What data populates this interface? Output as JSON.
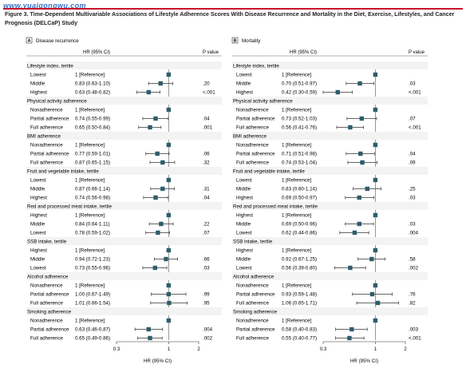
{
  "watermark": "www.yuaigongwu.com",
  "figure_title": "Figure 3. Time-Dependent Multivariable Associations of Lifestyle Adherence Scores With Disease Recurrence and Mortality in the Diet, Exercise, Lifestyles, and Cancer Prognosis (DELCaP) Study",
  "col_hr": "HR (95% CI)",
  "col_p": "P value",
  "x_axis": {
    "label": "HR (95% CI)",
    "scale": "log",
    "range": [
      0.3,
      2
    ],
    "ticks": [
      {
        "v": 0.3,
        "label": "0.3"
      },
      {
        "v": 1,
        "label": "1"
      },
      {
        "v": 2,
        "label": "2"
      }
    ]
  },
  "panels": [
    {
      "letter": "A",
      "title": "Disease recurrence",
      "groups": [
        {
          "title": "Lifestyle index, tertile",
          "rows": [
            {
              "label": "Lowest",
              "text": "1 [Reference]",
              "hr": 1.0,
              "lo": 1.0,
              "hi": 1.0,
              "p": ""
            },
            {
              "label": "Middle",
              "text": "0.83 (0.63-1.10)",
              "hr": 0.83,
              "lo": 0.63,
              "hi": 1.1,
              "p": ".20"
            },
            {
              "label": "Highest",
              "text": "0.63 (0.48-0.82)",
              "hr": 0.63,
              "lo": 0.48,
              "hi": 0.82,
              "p": "<.001"
            }
          ]
        },
        {
          "title": "Physical activity adherence",
          "rows": [
            {
              "label": "Nonadherence",
              "text": "1 [Reference]",
              "hr": 1.0,
              "lo": 1.0,
              "hi": 1.0,
              "p": ""
            },
            {
              "label": "Partial adherence",
              "text": "0.74 (0.55-0.99)",
              "hr": 0.74,
              "lo": 0.55,
              "hi": 0.99,
              "p": ".04"
            },
            {
              "label": "Full adherence",
              "text": "0.65 (0.50-0.84)",
              "hr": 0.65,
              "lo": 0.5,
              "hi": 0.84,
              "p": ".001"
            }
          ]
        },
        {
          "title": "BMI adherence",
          "rows": [
            {
              "label": "Nonadherence",
              "text": "1 [Reference]",
              "hr": 1.0,
              "lo": 1.0,
              "hi": 1.0,
              "p": ""
            },
            {
              "label": "Partial adherence",
              "text": "0.77 (0.59-1.01)",
              "hr": 0.77,
              "lo": 0.59,
              "hi": 1.01,
              "p": ".06"
            },
            {
              "label": "Full adherence",
              "text": "0.87 (0.65-1.15)",
              "hr": 0.87,
              "lo": 0.65,
              "hi": 1.15,
              "p": ".32"
            }
          ]
        },
        {
          "title": "Fruit and vegetable intake, tertile",
          "rows": [
            {
              "label": "Lowest",
              "text": "1 [Reference]",
              "hr": 1.0,
              "lo": 1.0,
              "hi": 1.0,
              "p": ""
            },
            {
              "label": "Middle",
              "text": "0.87 (0.66-1.14)",
              "hr": 0.87,
              "lo": 0.66,
              "hi": 1.14,
              "p": ".31"
            },
            {
              "label": "Highest",
              "text": "0.74 (0.56-0.98)",
              "hr": 0.74,
              "lo": 0.56,
              "hi": 0.98,
              "p": ".04"
            }
          ]
        },
        {
          "title": "Red and processed meat intake, tertile",
          "rows": [
            {
              "label": "Highest",
              "text": "1 [Reference]",
              "hr": 1.0,
              "lo": 1.0,
              "hi": 1.0,
              "p": ""
            },
            {
              "label": "Middle",
              "text": "0.84 (0.64-1.11)",
              "hr": 0.84,
              "lo": 0.64,
              "hi": 1.11,
              "p": ".22"
            },
            {
              "label": "Lowest",
              "text": "0.78 (0.59-1.02)",
              "hr": 0.78,
              "lo": 0.59,
              "hi": 1.02,
              "p": ".07"
            }
          ]
        },
        {
          "title": "SSB intake, tertile",
          "rows": [
            {
              "label": "Highest",
              "text": "1 [Reference]",
              "hr": 1.0,
              "lo": 1.0,
              "hi": 1.0,
              "p": ""
            },
            {
              "label": "Middle",
              "text": "0.94 (0.72-1.23)",
              "hr": 0.94,
              "lo": 0.72,
              "hi": 1.23,
              "p": ".66"
            },
            {
              "label": "Lowest",
              "text": "0.73 (0.55-0.96)",
              "hr": 0.73,
              "lo": 0.55,
              "hi": 0.96,
              "p": ".03"
            }
          ]
        },
        {
          "title": "Alcohol adherence",
          "rows": [
            {
              "label": "Nonadherence",
              "text": "1 [Reference]",
              "hr": 1.0,
              "lo": 1.0,
              "hi": 1.0,
              "p": ""
            },
            {
              "label": "Partial adherence",
              "text": "1.00 (0.67-1.49)",
              "hr": 1.0,
              "lo": 0.67,
              "hi": 1.49,
              "p": ".99"
            },
            {
              "label": "Full adherence",
              "text": "1.01 (0.66-1.54)",
              "hr": 1.01,
              "lo": 0.66,
              "hi": 1.54,
              "p": ".95"
            }
          ]
        },
        {
          "title": "Smoking adherence",
          "rows": [
            {
              "label": "Nonadherence",
              "text": "1 [Reference]",
              "hr": 1.0,
              "lo": 1.0,
              "hi": 1.0,
              "p": ""
            },
            {
              "label": "Partial adherence",
              "text": "0.63 (0.46-0.87)",
              "hr": 0.63,
              "lo": 0.46,
              "hi": 0.87,
              "p": ".004"
            },
            {
              "label": "Full adherence",
              "text": "0.65 (0.49-0.86)",
              "hr": 0.65,
              "lo": 0.49,
              "hi": 0.86,
              "p": ".002"
            }
          ]
        }
      ]
    },
    {
      "letter": "B",
      "title": "Mortality",
      "groups": [
        {
          "title": "Lifestyle index, tertile",
          "rows": [
            {
              "label": "Lowest",
              "text": "1 [Reference]",
              "hr": 1.0,
              "lo": 1.0,
              "hi": 1.0,
              "p": ""
            },
            {
              "label": "Middle",
              "text": "0.70 (0.51-0.97)",
              "hr": 0.7,
              "lo": 0.51,
              "hi": 0.97,
              "p": ".03"
            },
            {
              "label": "Highest",
              "text": "0.42 (0.30-0.59)",
              "hr": 0.42,
              "lo": 0.3,
              "hi": 0.59,
              "p": "<.001"
            }
          ]
        },
        {
          "title": "Physical activity adherence",
          "rows": [
            {
              "label": "Nonadherence",
              "text": "1 [Reference]",
              "hr": 1.0,
              "lo": 1.0,
              "hi": 1.0,
              "p": ""
            },
            {
              "label": "Partial adherence",
              "text": "0.73 (0.52-1.03)",
              "hr": 0.73,
              "lo": 0.52,
              "hi": 1.03,
              "p": ".07"
            },
            {
              "label": "Full adherence",
              "text": "0.56 (0.41-0.76)",
              "hr": 0.56,
              "lo": 0.41,
              "hi": 0.76,
              "p": "<.001"
            }
          ]
        },
        {
          "title": "BMI adherence",
          "rows": [
            {
              "label": "Nonadherence",
              "text": "1 [Reference]",
              "hr": 1.0,
              "lo": 1.0,
              "hi": 1.0,
              "p": ""
            },
            {
              "label": "Partial adherence",
              "text": "0.71 (0.51-0.98)",
              "hr": 0.71,
              "lo": 0.51,
              "hi": 0.98,
              "p": ".04"
            },
            {
              "label": "Full adherence",
              "text": "0.74 (0.53-1.04)",
              "hr": 0.74,
              "lo": 0.53,
              "hi": 1.04,
              "p": ".09"
            }
          ]
        },
        {
          "title": "Fruit and vegetable intake, tertile",
          "rows": [
            {
              "label": "Lowest",
              "text": "1 [Reference]",
              "hr": 1.0,
              "lo": 1.0,
              "hi": 1.0,
              "p": ""
            },
            {
              "label": "Middle",
              "text": "0.83 (0.60-1.14)",
              "hr": 0.83,
              "lo": 0.6,
              "hi": 1.14,
              "p": ".25"
            },
            {
              "label": "Highest",
              "text": "0.69 (0.50-0.97)",
              "hr": 0.69,
              "lo": 0.5,
              "hi": 0.97,
              "p": ".03"
            }
          ]
        },
        {
          "title": "Red and processed meat intake, tertile",
          "rows": [
            {
              "label": "Highest",
              "text": "1 [Reference]",
              "hr": 1.0,
              "lo": 1.0,
              "hi": 1.0,
              "p": ""
            },
            {
              "label": "Middle",
              "text": "0.69 (0.50-0.96)",
              "hr": 0.69,
              "lo": 0.5,
              "hi": 0.96,
              "p": ".03"
            },
            {
              "label": "Lowest",
              "text": "0.62 (0.44-0.86)",
              "hr": 0.62,
              "lo": 0.44,
              "hi": 0.86,
              "p": ".004"
            }
          ]
        },
        {
          "title": "SSB intake, tertile",
          "rows": [
            {
              "label": "Highest",
              "text": "1 [Reference]",
              "hr": 1.0,
              "lo": 1.0,
              "hi": 1.0,
              "p": ""
            },
            {
              "label": "Middle",
              "text": "0.92 (0.67-1.25)",
              "hr": 0.92,
              "lo": 0.67,
              "hi": 1.25,
              "p": ".58"
            },
            {
              "label": "Lowest",
              "text": "0.56 (0.39-0.80)",
              "hr": 0.56,
              "lo": 0.39,
              "hi": 0.8,
              "p": ".002"
            }
          ]
        },
        {
          "title": "Alcohol adherence",
          "rows": [
            {
              "label": "Nonadherence",
              "text": "1 [Reference]",
              "hr": 1.0,
              "lo": 1.0,
              "hi": 1.0,
              "p": ""
            },
            {
              "label": "Partial adherence",
              "text": "0.93 (0.59-1.48)",
              "hr": 0.93,
              "lo": 0.59,
              "hi": 1.48,
              "p": ".76"
            },
            {
              "label": "Full adherence",
              "text": "1.06 (0.65-1.71)",
              "hr": 1.06,
              "lo": 0.65,
              "hi": 1.71,
              "p": ".82"
            }
          ]
        },
        {
          "title": "Smoking adherence",
          "rows": [
            {
              "label": "Nonadherence",
              "text": "1 [Reference]",
              "hr": 1.0,
              "lo": 1.0,
              "hi": 1.0,
              "p": ""
            },
            {
              "label": "Partial adherence",
              "text": "0.58 (0.40-0.83)",
              "hr": 0.58,
              "lo": 0.4,
              "hi": 0.83,
              "p": ".003"
            },
            {
              "label": "Full adherence",
              "text": "0.55 (0.40-0.77)",
              "hr": 0.55,
              "lo": 0.4,
              "hi": 0.77,
              "p": "<.001"
            }
          ]
        }
      ]
    }
  ],
  "colors": {
    "marker": "#2e5d6b",
    "title_rule": "#c8102e",
    "watermark": "#1f5fbf",
    "group_band": "#f3f3f3"
  }
}
